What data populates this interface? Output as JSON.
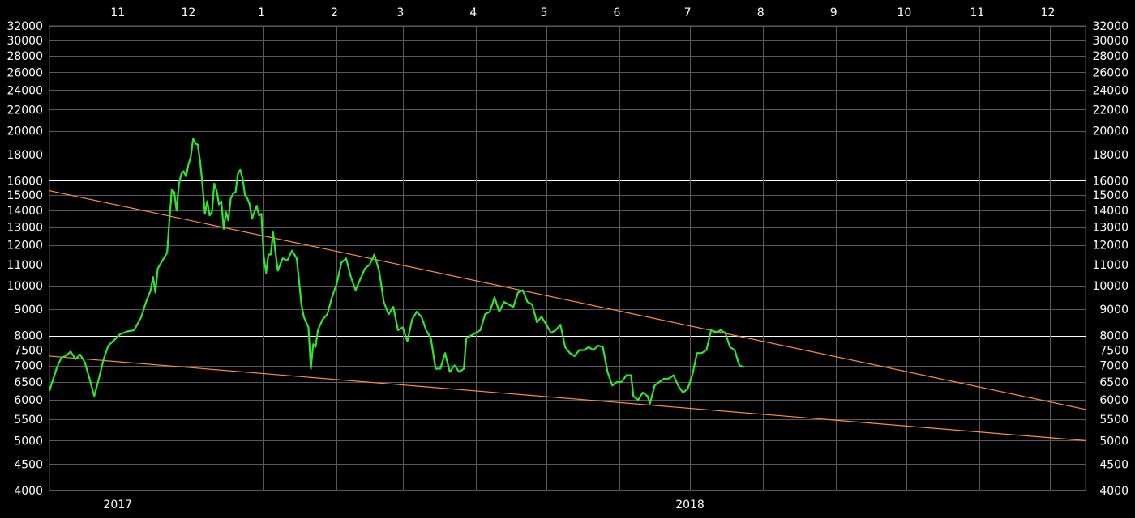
{
  "chart_data": {
    "type": "line",
    "scale": "log",
    "grid": true,
    "colors": {
      "background": "#000000",
      "grid": "#5a5a5a",
      "grid_major": "#ffffff",
      "price": "#2ee62e",
      "trendline": "#ff8c3c",
      "text": "#ffffff"
    },
    "x_range": [
      "2017-10-17",
      "2018-12-31"
    ],
    "ylim": [
      4000,
      32000
    ],
    "y_ticks": [
      4000,
      4500,
      5000,
      5500,
      6000,
      6500,
      7000,
      7500,
      8000,
      9000,
      10000,
      11000,
      12000,
      13000,
      14000,
      15000,
      16000,
      18000,
      20000,
      22000,
      24000,
      26000,
      28000,
      30000,
      32000
    ],
    "y_tick_labels": [
      "4000",
      "4500",
      "5000",
      "5500",
      "6000",
      "6500",
      "7000",
      "7500",
      "8000",
      "9000",
      "10000",
      "11000",
      "12000",
      "13000",
      "14000",
      "15000",
      "16000",
      "18000",
      "20000",
      "22000",
      "24000",
      "26000",
      "28000",
      "30000",
      "32000"
    ],
    "y_major_lines": [
      8000,
      16000
    ],
    "month_labels": [
      {
        "label": "11",
        "date": "2017-11-15"
      },
      {
        "label": "12",
        "date": "2017-12-15"
      },
      {
        "label": "1",
        "date": "2018-01-15"
      },
      {
        "label": "2",
        "date": "2018-02-15"
      },
      {
        "label": "3",
        "date": "2018-03-15"
      },
      {
        "label": "4",
        "date": "2018-04-15"
      },
      {
        "label": "5",
        "date": "2018-05-15"
      },
      {
        "label": "6",
        "date": "2018-06-15"
      },
      {
        "label": "7",
        "date": "2018-07-15"
      },
      {
        "label": "8",
        "date": "2018-08-15"
      },
      {
        "label": "9",
        "date": "2018-09-15"
      },
      {
        "label": "10",
        "date": "2018-10-15"
      },
      {
        "label": "11",
        "date": "2018-11-15"
      },
      {
        "label": "12",
        "date": "2018-12-15"
      }
    ],
    "month_gridlines": [
      "2017-11-15",
      "2017-12-16",
      "2018-01-16",
      "2018-02-16",
      "2018-03-16",
      "2018-04-16",
      "2018-05-16",
      "2018-06-16",
      "2018-07-16",
      "2018-08-16",
      "2018-09-16",
      "2018-10-16",
      "2018-11-16",
      "2018-12-16"
    ],
    "year_markers": [
      {
        "label": "2017",
        "date": "2017-11-15"
      },
      {
        "label": "2018",
        "date": "2018-07-16"
      }
    ],
    "year_divider": "2017-12-16",
    "series": [
      {
        "points": [
          [
            "2017-10-17",
            6250
          ],
          [
            "2017-10-20",
            6900
          ],
          [
            "2017-10-22",
            7250
          ],
          [
            "2017-10-24",
            7300
          ],
          [
            "2017-10-26",
            7450
          ],
          [
            "2017-10-28",
            7200
          ],
          [
            "2017-10-30",
            7350
          ],
          [
            "2017-11-01",
            7100
          ],
          [
            "2017-11-03",
            6600
          ],
          [
            "2017-11-05",
            6100
          ],
          [
            "2017-11-07",
            6600
          ],
          [
            "2017-11-09",
            7200
          ],
          [
            "2017-11-11",
            7650
          ],
          [
            "2017-11-13",
            7800
          ],
          [
            "2017-11-16",
            8050
          ],
          [
            "2017-11-19",
            8150
          ],
          [
            "2017-11-22",
            8200
          ],
          [
            "2017-11-25",
            8700
          ],
          [
            "2017-11-27",
            9300
          ],
          [
            "2017-11-29",
            9800
          ],
          [
            "2017-11-30",
            10400
          ],
          [
            "2017-12-01",
            9700
          ],
          [
            "2017-12-02",
            10800
          ],
          [
            "2017-12-04",
            11200
          ],
          [
            "2017-12-06",
            11600
          ],
          [
            "2017-12-07",
            13500
          ],
          [
            "2017-12-08",
            15400
          ],
          [
            "2017-12-09",
            15200
          ],
          [
            "2017-12-10",
            14000
          ],
          [
            "2017-12-11",
            15800
          ],
          [
            "2017-12-12",
            16500
          ],
          [
            "2017-12-13",
            16700
          ],
          [
            "2017-12-14",
            16300
          ],
          [
            "2017-12-15",
            17200
          ],
          [
            "2017-12-16",
            17800
          ],
          [
            "2017-12-17",
            19300
          ],
          [
            "2017-12-18",
            18900
          ],
          [
            "2017-12-19",
            18800
          ],
          [
            "2017-12-20",
            17400
          ],
          [
            "2017-12-21",
            15700
          ],
          [
            "2017-12-22",
            13800
          ],
          [
            "2017-12-23",
            14600
          ],
          [
            "2017-12-24",
            13700
          ],
          [
            "2017-12-25",
            13900
          ],
          [
            "2017-12-26",
            15800
          ],
          [
            "2017-12-27",
            15300
          ],
          [
            "2017-12-28",
            14400
          ],
          [
            "2017-12-29",
            14600
          ],
          [
            "2017-12-30",
            12900
          ],
          [
            "2017-12-31",
            13900
          ],
          [
            "2018-01-01",
            13400
          ],
          [
            "2018-01-02",
            14800
          ],
          [
            "2018-01-03",
            15100
          ],
          [
            "2018-01-04",
            15200
          ],
          [
            "2018-01-05",
            16500
          ],
          [
            "2018-01-06",
            16800
          ],
          [
            "2018-01-07",
            16200
          ],
          [
            "2018-01-08",
            15000
          ],
          [
            "2018-01-09",
            14800
          ],
          [
            "2018-01-10",
            14400
          ],
          [
            "2018-01-11",
            13500
          ],
          [
            "2018-01-12",
            13900
          ],
          [
            "2018-01-13",
            14300
          ],
          [
            "2018-01-14",
            13700
          ],
          [
            "2018-01-15",
            13800
          ],
          [
            "2018-01-16",
            11400
          ],
          [
            "2018-01-17",
            10600
          ],
          [
            "2018-01-18",
            11500
          ],
          [
            "2018-01-19",
            11500
          ],
          [
            "2018-01-20",
            12700
          ],
          [
            "2018-01-21",
            11600
          ],
          [
            "2018-01-22",
            10700
          ],
          [
            "2018-01-24",
            11300
          ],
          [
            "2018-01-26",
            11200
          ],
          [
            "2018-01-28",
            11700
          ],
          [
            "2018-01-30",
            11300
          ],
          [
            "2018-01-31",
            10200
          ],
          [
            "2018-02-01",
            9200
          ],
          [
            "2018-02-02",
            8700
          ],
          [
            "2018-02-04",
            8300
          ],
          [
            "2018-02-05",
            6900
          ],
          [
            "2018-02-06",
            7700
          ],
          [
            "2018-02-07",
            7600
          ],
          [
            "2018-02-08",
            8200
          ],
          [
            "2018-02-10",
            8600
          ],
          [
            "2018-02-12",
            8800
          ],
          [
            "2018-02-14",
            9500
          ],
          [
            "2018-02-16",
            10100
          ],
          [
            "2018-02-18",
            11100
          ],
          [
            "2018-02-20",
            11300
          ],
          [
            "2018-02-22",
            10400
          ],
          [
            "2018-02-24",
            9800
          ],
          [
            "2018-02-26",
            10300
          ],
          [
            "2018-02-28",
            10800
          ],
          [
            "2018-03-02",
            11000
          ],
          [
            "2018-03-04",
            11500
          ],
          [
            "2018-03-06",
            10700
          ],
          [
            "2018-03-08",
            9300
          ],
          [
            "2018-03-10",
            8800
          ],
          [
            "2018-03-12",
            9100
          ],
          [
            "2018-03-14",
            8200
          ],
          [
            "2018-03-16",
            8300
          ],
          [
            "2018-03-18",
            7800
          ],
          [
            "2018-03-20",
            8600
          ],
          [
            "2018-03-22",
            8900
          ],
          [
            "2018-03-24",
            8700
          ],
          [
            "2018-03-26",
            8200
          ],
          [
            "2018-03-28",
            7900
          ],
          [
            "2018-03-30",
            6900
          ],
          [
            "2018-04-01",
            6900
          ],
          [
            "2018-04-03",
            7400
          ],
          [
            "2018-04-05",
            6800
          ],
          [
            "2018-04-07",
            7000
          ],
          [
            "2018-04-09",
            6800
          ],
          [
            "2018-04-11",
            6900
          ],
          [
            "2018-04-12",
            7900
          ],
          [
            "2018-04-14",
            8000
          ],
          [
            "2018-04-16",
            8100
          ],
          [
            "2018-04-18",
            8200
          ],
          [
            "2018-04-20",
            8800
          ],
          [
            "2018-04-22",
            8900
          ],
          [
            "2018-04-24",
            9500
          ],
          [
            "2018-04-26",
            8900
          ],
          [
            "2018-04-28",
            9300
          ],
          [
            "2018-04-30",
            9200
          ],
          [
            "2018-05-02",
            9100
          ],
          [
            "2018-05-04",
            9700
          ],
          [
            "2018-05-06",
            9800
          ],
          [
            "2018-05-08",
            9300
          ],
          [
            "2018-05-10",
            9200
          ],
          [
            "2018-05-12",
            8500
          ],
          [
            "2018-05-14",
            8700
          ],
          [
            "2018-05-16",
            8400
          ],
          [
            "2018-05-18",
            8100
          ],
          [
            "2018-05-20",
            8200
          ],
          [
            "2018-05-22",
            8400
          ],
          [
            "2018-05-24",
            7600
          ],
          [
            "2018-05-26",
            7400
          ],
          [
            "2018-05-28",
            7300
          ],
          [
            "2018-05-30",
            7500
          ],
          [
            "2018-06-01",
            7500
          ],
          [
            "2018-06-03",
            7600
          ],
          [
            "2018-06-05",
            7500
          ],
          [
            "2018-06-07",
            7650
          ],
          [
            "2018-06-09",
            7600
          ],
          [
            "2018-06-11",
            6800
          ],
          [
            "2018-06-13",
            6400
          ],
          [
            "2018-06-15",
            6500
          ],
          [
            "2018-06-17",
            6500
          ],
          [
            "2018-06-19",
            6700
          ],
          [
            "2018-06-21",
            6700
          ],
          [
            "2018-06-22",
            6100
          ],
          [
            "2018-06-24",
            6000
          ],
          [
            "2018-06-26",
            6200
          ],
          [
            "2018-06-28",
            6100
          ],
          [
            "2018-06-29",
            5900
          ],
          [
            "2018-07-01",
            6400
          ],
          [
            "2018-07-03",
            6500
          ],
          [
            "2018-07-05",
            6600
          ],
          [
            "2018-07-07",
            6600
          ],
          [
            "2018-07-09",
            6700
          ],
          [
            "2018-07-11",
            6400
          ],
          [
            "2018-07-13",
            6200
          ],
          [
            "2018-07-15",
            6300
          ],
          [
            "2018-07-17",
            6700
          ],
          [
            "2018-07-19",
            7400
          ],
          [
            "2018-07-21",
            7400
          ],
          [
            "2018-07-23",
            7500
          ],
          [
            "2018-07-25",
            8200
          ],
          [
            "2018-07-27",
            8100
          ],
          [
            "2018-07-29",
            8200
          ],
          [
            "2018-07-31",
            8100
          ],
          [
            "2018-08-02",
            7600
          ],
          [
            "2018-08-04",
            7500
          ],
          [
            "2018-08-06",
            7000
          ],
          [
            "2018-08-08",
            6950
          ]
        ]
      }
    ],
    "trendlines": [
      {
        "start": [
          "2017-10-17",
          15300
        ],
        "end": [
          "2018-12-31",
          5750
        ]
      },
      {
        "start": [
          "2017-10-17",
          7300
        ],
        "end": [
          "2018-12-31",
          5000
        ]
      }
    ]
  }
}
